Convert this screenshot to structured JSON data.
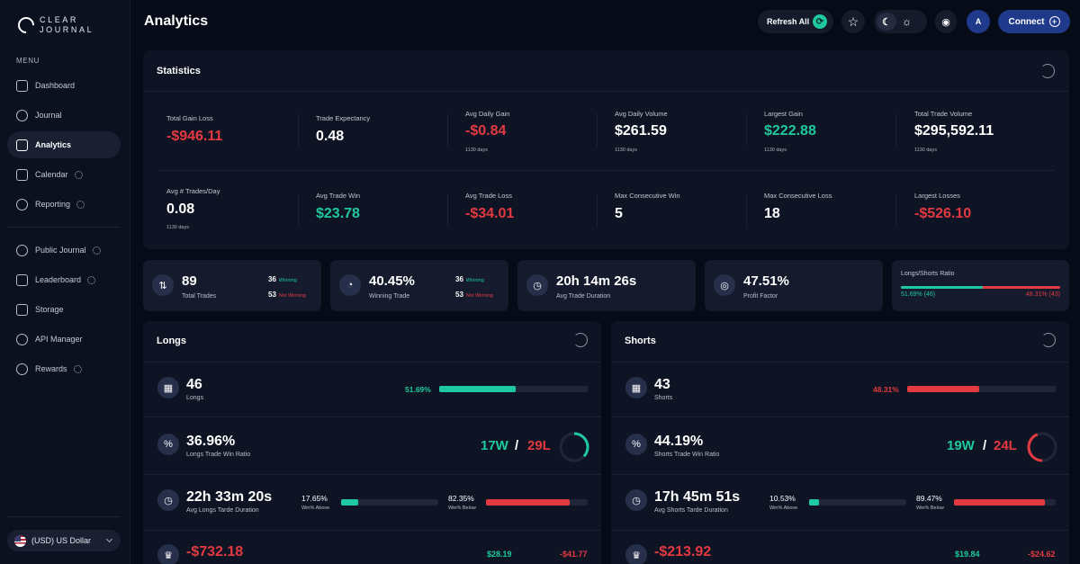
{
  "brand": {
    "line1": "CLEAR",
    "line2": "JOURNAL"
  },
  "sidebar": {
    "menu_label": "MENU",
    "items": [
      {
        "label": "Dashboard",
        "icon": "home-icon"
      },
      {
        "label": "Journal",
        "icon": "chart-line-icon"
      },
      {
        "label": "Analytics",
        "icon": "analytics-icon",
        "active": true
      },
      {
        "label": "Calendar",
        "icon": "calendar-icon",
        "settings": true
      },
      {
        "label": "Reporting",
        "icon": "report-icon",
        "settings": true
      },
      {
        "label": "Public Journal",
        "icon": "check-circle-icon",
        "settings": true
      },
      {
        "label": "Leaderboard",
        "icon": "leaderboard-icon",
        "settings": true
      },
      {
        "label": "Storage",
        "icon": "book-icon"
      },
      {
        "label": "API Manager",
        "icon": "api-icon"
      },
      {
        "label": "Rewards",
        "icon": "trophy-icon",
        "settings": true
      }
    ],
    "currency": "(USD) US Dollar"
  },
  "header": {
    "title": "Analytics",
    "refresh_label": "Refresh All",
    "avatar_letter": "A",
    "connect_label": "Connect"
  },
  "statistics": {
    "title": "Statistics",
    "row1": [
      {
        "label": "Total Gain Loss",
        "value": "-$946.11",
        "color": "red"
      },
      {
        "label": "Trade Expectancy",
        "value": "0.48"
      },
      {
        "label": "Avg Daily Gain",
        "value": "-$0.84",
        "color": "red",
        "sub": "1130 days"
      },
      {
        "label": "Avg Daily Volume",
        "value": "$261.59",
        "sub": "1130 days"
      },
      {
        "label": "Largest Gain",
        "value": "$222.88",
        "color": "green",
        "sub": "1130 days"
      },
      {
        "label": "Total Trade Volume",
        "value": "$295,592.11",
        "sub": "1130 days"
      }
    ],
    "row2": [
      {
        "label": "Avg # Trades/Day",
        "value": "0.08",
        "sub": "1130 days"
      },
      {
        "label": "Avg Trade Win",
        "value": "$23.78",
        "color": "green"
      },
      {
        "label": "Avg Trade Loss",
        "value": "-$34.01",
        "color": "red"
      },
      {
        "label": "Max Consecutive Win",
        "value": "5"
      },
      {
        "label": "Max Consecutive Loss",
        "value": "18"
      },
      {
        "label": "Largest Losses",
        "value": "-$526.10",
        "color": "red"
      }
    ]
  },
  "summary": {
    "total_trades": {
      "value": "89",
      "label": "Total Trades",
      "winning": "36",
      "winning_label": "Winning",
      "losing": "53",
      "losing_label": "Not Winning"
    },
    "winning_trade": {
      "value": "40.45%",
      "label": "Winning Trade",
      "winning": "36",
      "winning_label": "Winning",
      "losing": "53",
      "losing_label": "Not Winning"
    },
    "avg_duration": {
      "value": "20h 14m 26s",
      "label": "Avg Trade Duration"
    },
    "profit_factor": {
      "value": "47.51%",
      "label": "Profit Factor"
    },
    "ratio": {
      "label": "Longs/Shorts Ratio",
      "long_text": "51.69% (46)",
      "short_text": "48.31% (43)",
      "long_fraction": 0.5169
    }
  },
  "longs": {
    "title": "Longs",
    "count": "46",
    "count_label": "Longs",
    "pct": "51.69%",
    "fraction": 0.5169,
    "ratio": "36.96%",
    "ratio_label": "Longs Trade Win Ratio",
    "wins": "17W",
    "losses": "29L",
    "win_fraction": 0.3696,
    "duration": "22h 33m 20s",
    "duration_label": "Avg Longs Tarde Duration",
    "above_pct": "17.65%",
    "above_label": "Win% Above",
    "above_fraction": 0.1765,
    "below_pct": "82.35%",
    "below_label": "Win% Below",
    "below_fraction": 0.8235,
    "pnl": "-$732.18",
    "avg_win": "$28.19",
    "avg_loss": "-$41.77"
  },
  "shorts": {
    "title": "Shorts",
    "count": "43",
    "count_label": "Shorts",
    "pct": "48.31%",
    "fraction": 0.4831,
    "ratio": "44.19%",
    "ratio_label": "Shorts Trade Win Ratio",
    "wins": "19W",
    "losses": "24L",
    "win_fraction": 0.4419,
    "duration": "17h 45m 51s",
    "duration_label": "Avg Shorts Tarde Duration",
    "above_pct": "10.53%",
    "above_label": "Win% Above",
    "above_fraction": 0.1053,
    "below_pct": "89.47%",
    "below_label": "Win% Below",
    "below_fraction": 0.8947,
    "pnl": "-$213.92",
    "avg_win": "$19.84",
    "avg_loss": "-$24.62"
  },
  "colors": {
    "green": "#1ec8a0",
    "red": "#e33941",
    "accent": "#1f3a8a"
  }
}
